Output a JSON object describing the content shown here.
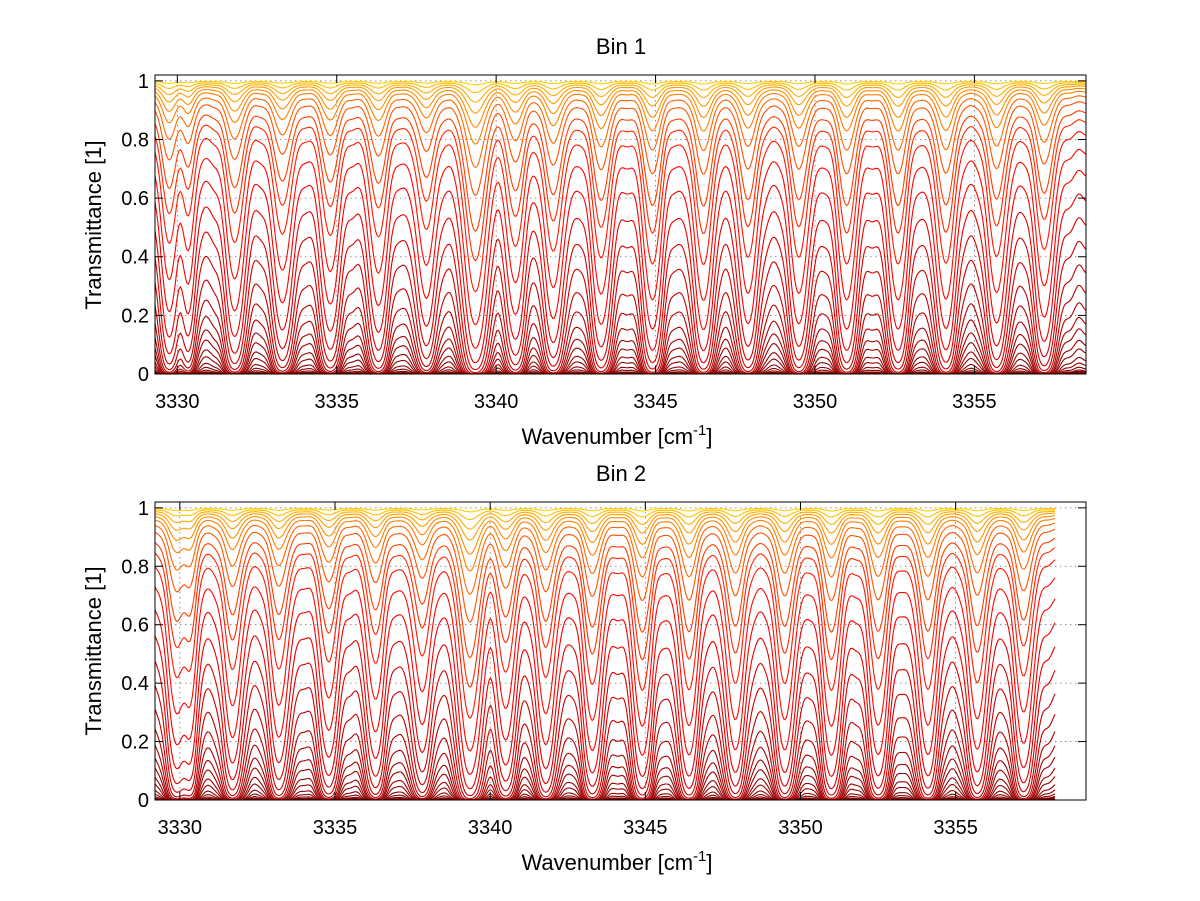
{
  "chart_data": [
    {
      "type": "line",
      "title": "Bin 1",
      "xlabel": "Wavenumber [cm",
      "xlabel_sup": "-1",
      "xlabel_end": "]",
      "ylabel": "Transmittance [1]",
      "xlim": [
        3329.3,
        3358.5
      ],
      "ylim": [
        0,
        1.02
      ],
      "xticks": [
        3330,
        3335,
        3340,
        3345,
        3350,
        3355
      ],
      "yticks": [
        0,
        0.2,
        0.4,
        0.6,
        0.8,
        1
      ],
      "ytick_labels": [
        "0",
        "0.2",
        "0.4",
        "0.6",
        "0.8",
        "1"
      ],
      "grid": true,
      "series_count": 30,
      "data_x_range": [
        3329.3,
        3358.5
      ],
      "baseline_transmittance": [
        0.003,
        0.006,
        0.01,
        0.015,
        0.025,
        0.04,
        0.06,
        0.09,
        0.12,
        0.16,
        0.2,
        0.25,
        0.31,
        0.38,
        0.46,
        0.54,
        0.62,
        0.7,
        0.77,
        0.83,
        0.87,
        0.9,
        0.93,
        0.95,
        0.965,
        0.975,
        0.983,
        0.989,
        0.994,
        0.998
      ],
      "absorption_lines": [
        {
          "x": 3329.75,
          "depth": 0.55,
          "width": 0.28
        },
        {
          "x": 3330.35,
          "depth": 0.35,
          "width": 0.22
        },
        {
          "x": 3331.8,
          "depth": 0.55,
          "width": 0.3
        },
        {
          "x": 3333.3,
          "depth": 0.5,
          "width": 0.3
        },
        {
          "x": 3334.8,
          "depth": 0.5,
          "width": 0.3
        },
        {
          "x": 3336.3,
          "depth": 0.5,
          "width": 0.3
        },
        {
          "x": 3337.8,
          "depth": 0.45,
          "width": 0.3
        },
        {
          "x": 3339.35,
          "depth": 0.97,
          "width": 0.35
        },
        {
          "x": 3340.6,
          "depth": 0.55,
          "width": 0.3
        },
        {
          "x": 3341.8,
          "depth": 0.6,
          "width": 0.3
        },
        {
          "x": 3343.3,
          "depth": 0.65,
          "width": 0.3
        },
        {
          "x": 3344.9,
          "depth": 0.7,
          "width": 0.3
        },
        {
          "x": 3346.5,
          "depth": 0.7,
          "width": 0.3
        },
        {
          "x": 3347.9,
          "depth": 0.65,
          "width": 0.3
        },
        {
          "x": 3349.5,
          "depth": 0.65,
          "width": 0.3
        },
        {
          "x": 3351.0,
          "depth": 0.7,
          "width": 0.3
        },
        {
          "x": 3352.6,
          "depth": 0.7,
          "width": 0.3
        },
        {
          "x": 3354.1,
          "depth": 0.7,
          "width": 0.3
        },
        {
          "x": 3355.7,
          "depth": 0.65,
          "width": 0.3
        },
        {
          "x": 3357.2,
          "depth": 0.6,
          "width": 0.3
        }
      ],
      "colors": [
        "#7f0000",
        "#ff0000",
        "#ff8000",
        "#ffd000"
      ]
    },
    {
      "type": "line",
      "title": "Bin 2",
      "xlabel": "Wavenumber [cm",
      "xlabel_sup": "-1",
      "xlabel_end": "]",
      "ylabel": "Transmittance [1]",
      "xlim": [
        3329.2,
        3359.2
      ],
      "ylim": [
        0,
        1.02
      ],
      "xticks": [
        3330,
        3335,
        3340,
        3345,
        3350,
        3355
      ],
      "yticks": [
        0,
        0.2,
        0.4,
        0.6,
        0.8,
        1
      ],
      "ytick_labels": [
        "0",
        "0.2",
        "0.4",
        "0.6",
        "0.8",
        "1"
      ],
      "grid": true,
      "series_count": 30,
      "data_x_range": [
        3329.2,
        3358.2
      ],
      "baseline_transmittance": [
        0.003,
        0.006,
        0.01,
        0.015,
        0.025,
        0.04,
        0.06,
        0.09,
        0.12,
        0.16,
        0.2,
        0.25,
        0.31,
        0.38,
        0.46,
        0.54,
        0.62,
        0.7,
        0.77,
        0.83,
        0.87,
        0.9,
        0.93,
        0.95,
        0.965,
        0.975,
        0.983,
        0.989,
        0.994,
        0.998
      ],
      "absorption_lines": [
        {
          "x": 3329.9,
          "depth": 0.6,
          "width": 0.3
        },
        {
          "x": 3330.35,
          "depth": 0.45,
          "width": 0.22
        },
        {
          "x": 3331.7,
          "depth": 0.55,
          "width": 0.3
        },
        {
          "x": 3333.2,
          "depth": 0.55,
          "width": 0.3
        },
        {
          "x": 3334.8,
          "depth": 0.5,
          "width": 0.3
        },
        {
          "x": 3336.3,
          "depth": 0.5,
          "width": 0.3
        },
        {
          "x": 3337.8,
          "depth": 0.45,
          "width": 0.3
        },
        {
          "x": 3339.35,
          "depth": 0.97,
          "width": 0.35
        },
        {
          "x": 3340.5,
          "depth": 0.55,
          "width": 0.3
        },
        {
          "x": 3341.8,
          "depth": 0.6,
          "width": 0.3
        },
        {
          "x": 3343.3,
          "depth": 0.65,
          "width": 0.3
        },
        {
          "x": 3344.9,
          "depth": 0.7,
          "width": 0.3
        },
        {
          "x": 3346.4,
          "depth": 0.7,
          "width": 0.3
        },
        {
          "x": 3347.9,
          "depth": 0.65,
          "width": 0.3
        },
        {
          "x": 3349.5,
          "depth": 0.65,
          "width": 0.3
        },
        {
          "x": 3351.0,
          "depth": 0.7,
          "width": 0.3
        },
        {
          "x": 3352.5,
          "depth": 0.7,
          "width": 0.3
        },
        {
          "x": 3354.1,
          "depth": 0.7,
          "width": 0.3
        },
        {
          "x": 3355.7,
          "depth": 0.65,
          "width": 0.3
        },
        {
          "x": 3357.2,
          "depth": 0.6,
          "width": 0.3
        }
      ],
      "colors": [
        "#7f0000",
        "#ff0000",
        "#ff8000",
        "#ffd000"
      ]
    }
  ]
}
